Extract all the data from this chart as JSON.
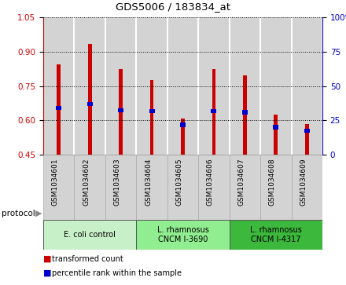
{
  "title": "GDS5006 / 183834_at",
  "samples": [
    "GSM1034601",
    "GSM1034602",
    "GSM1034603",
    "GSM1034604",
    "GSM1034605",
    "GSM1034606",
    "GSM1034607",
    "GSM1034608",
    "GSM1034609"
  ],
  "red_values": [
    0.845,
    0.935,
    0.825,
    0.775,
    0.607,
    0.825,
    0.795,
    0.625,
    0.585
  ],
  "blue_values": [
    0.655,
    0.67,
    0.645,
    0.64,
    0.58,
    0.64,
    0.635,
    0.57,
    0.555
  ],
  "ylim_left": [
    0.45,
    1.05
  ],
  "ylim_right": [
    0,
    100
  ],
  "yticks_left": [
    0.45,
    0.6,
    0.75,
    0.9,
    1.05
  ],
  "yticks_right": [
    0,
    25,
    50,
    75,
    100
  ],
  "ytick_labels_right": [
    "0",
    "25",
    "50",
    "75",
    "100%"
  ],
  "bar_bottom": 0.45,
  "group_colors": [
    "#c8f0c8",
    "#90ee90",
    "#3cb83c"
  ],
  "group_labels": [
    "E. coli control",
    "L. rhamnosus\nCNCM I-3690",
    "L. rhamnosus\nCNCM I-4317"
  ],
  "group_ranges": [
    [
      0,
      3
    ],
    [
      3,
      6
    ],
    [
      6,
      9
    ]
  ],
  "red_color": "#cc0000",
  "blue_color": "#0000cc",
  "bar_bg_color": "#d3d3d3",
  "left_tick_color": "#cc0000",
  "right_tick_color": "#0000cc"
}
